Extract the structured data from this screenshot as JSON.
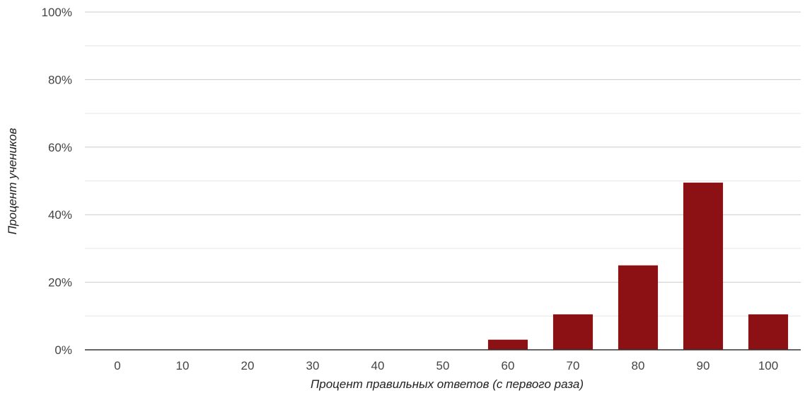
{
  "chart_data": {
    "type": "bar",
    "categories": [
      "0",
      "10",
      "20",
      "30",
      "40",
      "50",
      "60",
      "70",
      "80",
      "90",
      "100"
    ],
    "values": [
      0,
      0,
      0,
      0,
      0,
      0,
      3,
      10.5,
      25,
      49.5,
      10.5
    ],
    "xlabel": "Процент правильных ответов (с первого раза)",
    "ylabel": "Процент учеников",
    "ylim": [
      0,
      100
    ],
    "y_ticks": [
      "0%",
      "20%",
      "40%",
      "60%",
      "80%",
      "100%"
    ],
    "y_tick_values": [
      0,
      20,
      40,
      60,
      80,
      100
    ],
    "y_minor_tick_values": [
      10,
      30,
      50,
      70,
      90
    ],
    "grid": true,
    "legend": "none",
    "colors": {
      "bar": "#8b1114",
      "gridline": "#cccccc",
      "minor_gridline": "#e6e6e6",
      "baseline": "#333333"
    }
  }
}
